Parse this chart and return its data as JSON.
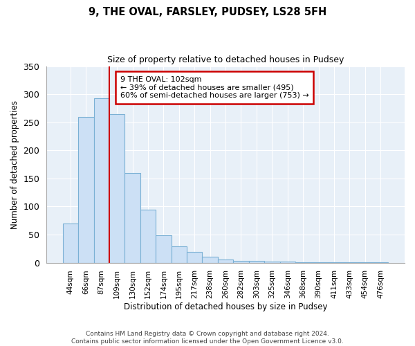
{
  "title": "9, THE OVAL, FARSLEY, PUDSEY, LS28 5FH",
  "subtitle": "Size of property relative to detached houses in Pudsey",
  "xlabel": "Distribution of detached houses by size in Pudsey",
  "ylabel": "Number of detached properties",
  "bar_labels": [
    "44sqm",
    "66sqm",
    "87sqm",
    "109sqm",
    "130sqm",
    "152sqm",
    "174sqm",
    "195sqm",
    "217sqm",
    "238sqm",
    "260sqm",
    "282sqm",
    "303sqm",
    "325sqm",
    "346sqm",
    "368sqm",
    "390sqm",
    "411sqm",
    "433sqm",
    "454sqm",
    "476sqm"
  ],
  "bar_values": [
    70,
    260,
    293,
    265,
    160,
    95,
    49,
    29,
    19,
    10,
    6,
    3,
    3,
    2,
    2,
    1,
    1,
    1,
    1,
    1,
    1
  ],
  "bar_color": "#cce0f5",
  "bar_edge_color": "#7ab0d4",
  "vline_color": "#cc0000",
  "ylim": [
    0,
    350
  ],
  "annotation_text": "9 THE OVAL: 102sqm\n← 39% of detached houses are smaller (495)\n60% of semi-detached houses are larger (753) →",
  "annotation_box_color": "#ffffff",
  "annotation_box_edge_color": "#cc0000",
  "plot_bg_color": "#e8f0f8",
  "footer_line1": "Contains HM Land Registry data © Crown copyright and database right 2024.",
  "footer_line2": "Contains public sector information licensed under the Open Government Licence v3.0."
}
